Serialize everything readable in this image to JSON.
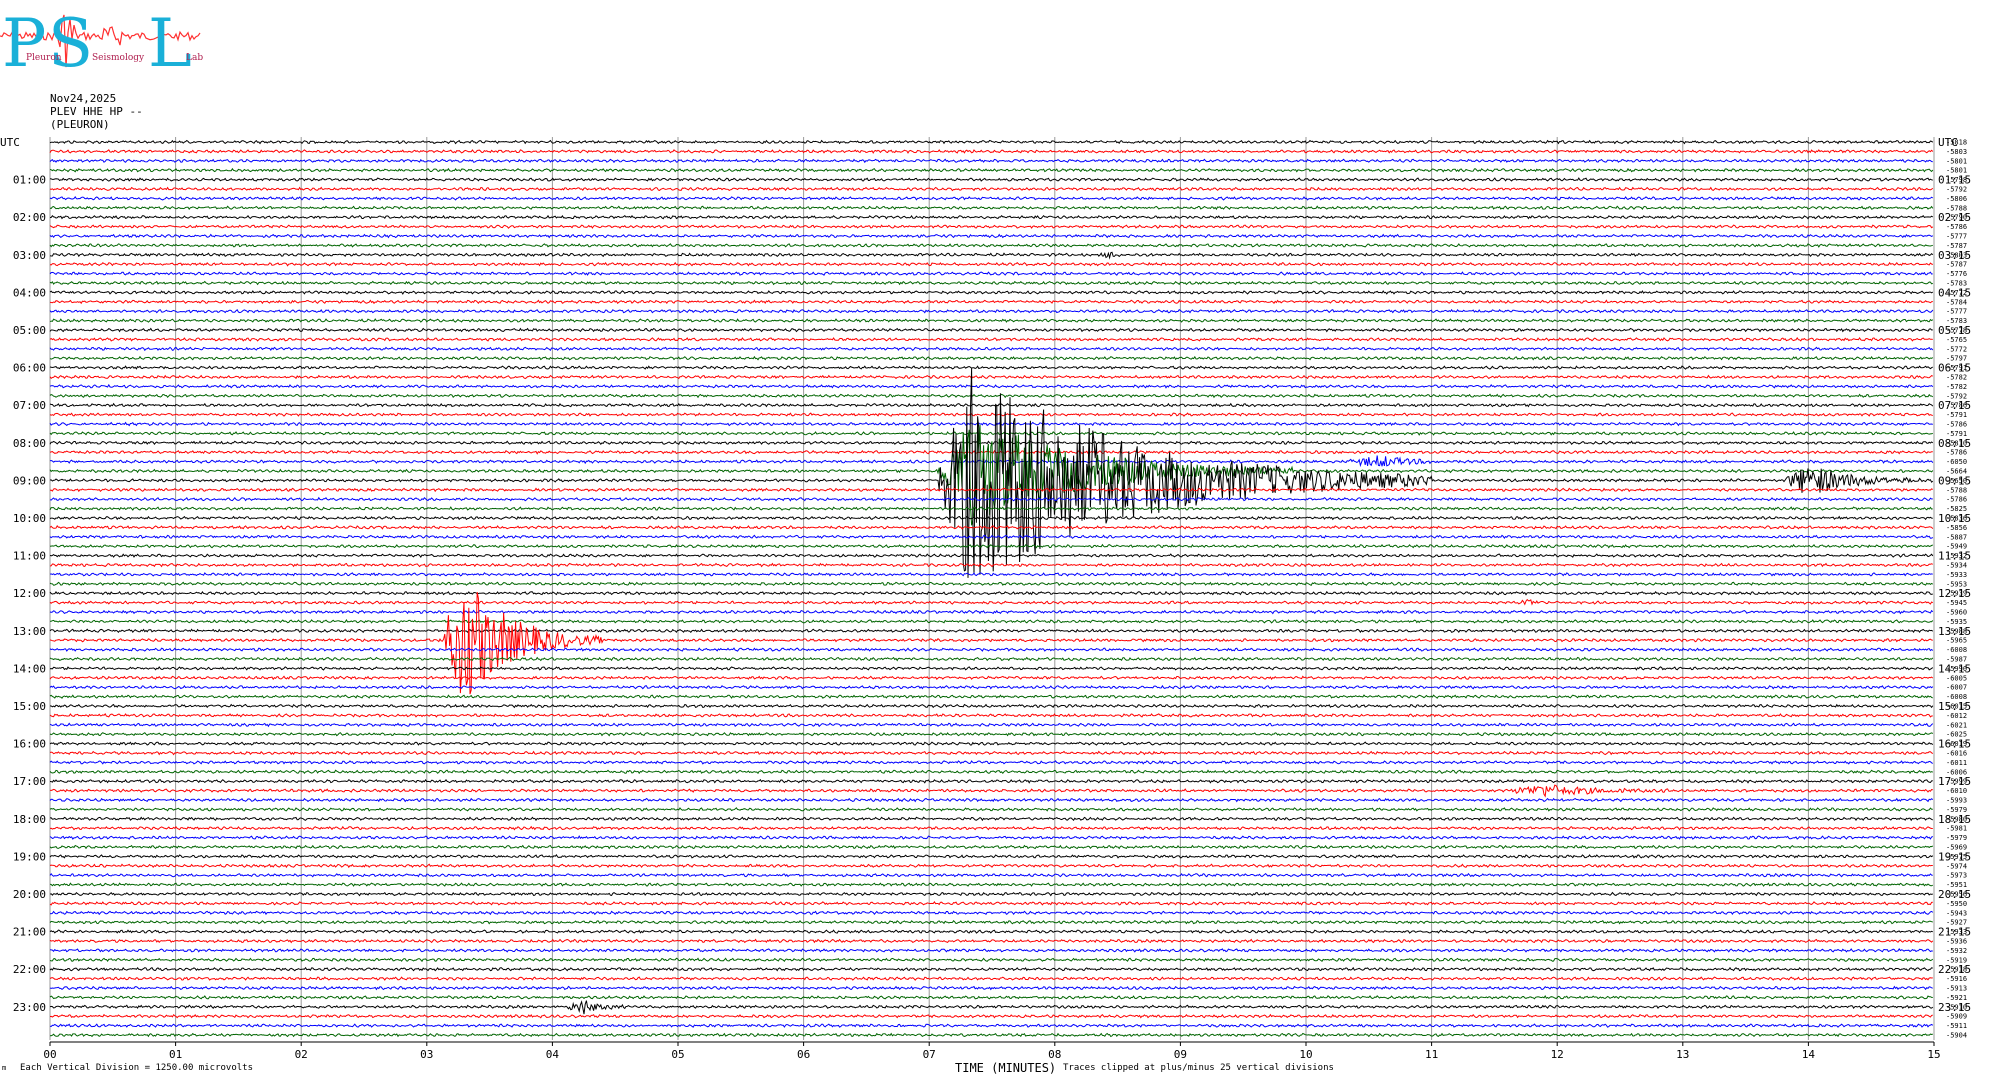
{
  "logo": {
    "letters": "PSL",
    "words": [
      "Pleuron",
      "Seismology",
      "Lab"
    ],
    "letter_color": "#1ab0d8",
    "trace_color": "#ff3030"
  },
  "header": {
    "date": "Nov24,2025",
    "station": "PLEV HHE HP --",
    "site": "(PLEURON)"
  },
  "footer": {
    "scale_note": "Each Vertical Division = 1250.00 microvolts",
    "xaxis_title": "TIME (MINUTES)",
    "clip_note": "Traces clipped at plus/minus 25 vertical divisions",
    "corner_mark": "m"
  },
  "chart_data": {
    "type": "line",
    "title": "",
    "xlabel": "TIME (MINUTES)",
    "xlim": [
      0,
      15
    ],
    "x_ticks": [
      "00",
      "01",
      "02",
      "03",
      "04",
      "05",
      "06",
      "07",
      "08",
      "09",
      "10",
      "11",
      "12",
      "13",
      "14",
      "15"
    ],
    "rows_per_hour": 4,
    "minutes_per_row": 15,
    "n_rows": 96,
    "color_cycle": [
      "#000000",
      "#ff0000",
      "#0000ff",
      "#006400"
    ],
    "left_axis_title": "UTC",
    "right_axis_title": "UTC",
    "left_labels": [
      "01:00",
      "02:00",
      "03:00",
      "04:00",
      "05:00",
      "06:00",
      "07:00",
      "08:00",
      "09:00",
      "10:00",
      "11:00",
      "12:00",
      "13:00",
      "14:00",
      "15:00",
      "16:00",
      "17:00",
      "18:00",
      "19:00",
      "20:00",
      "21:00",
      "22:00",
      "23:00"
    ],
    "right_labels": [
      "01:15",
      "02:15",
      "03:15",
      "04:15",
      "05:15",
      "06:15",
      "07:15",
      "08:15",
      "09:15",
      "10:15",
      "11:15",
      "12:15",
      "13:15",
      "14:15",
      "15:15",
      "16:15",
      "17:15",
      "18:15",
      "19:15",
      "20:15",
      "21:15",
      "22:15",
      "23:15"
    ],
    "offsets": [
      -5818,
      -5803,
      -5801,
      -5801,
      -5798,
      -5792,
      -5806,
      -5788,
      -5790,
      -5786,
      -5777,
      -5787,
      -5803,
      -5787,
      -5776,
      -5783,
      -5772,
      -5784,
      -5777,
      -5783,
      -5778,
      -5765,
      -5772,
      -5797,
      -5791,
      -5782,
      -5782,
      -5792,
      -5786,
      -5791,
      -5786,
      -5791,
      -5810,
      -5786,
      -6050,
      -5664,
      -5650,
      -5788,
      -5786,
      -5825,
      -5836,
      -5856,
      -5887,
      -5949,
      -5932,
      -5934,
      -5933,
      -5953,
      -5939,
      -5945,
      -5960,
      -5935,
      -5988,
      -5965,
      -6008,
      -5987,
      -5990,
      -6005,
      -6007,
      -6008,
      -6015,
      -6012,
      -6021,
      -6025,
      -6019,
      -6016,
      -6011,
      -6006,
      -5999,
      -6010,
      -5993,
      -5979,
      -5980,
      -5981,
      -5979,
      -5969,
      -5975,
      -5974,
      -5973,
      -5951,
      -5956,
      -5950,
      -5943,
      -5927,
      -5933,
      -5936,
      -5932,
      -5919,
      -5918,
      -5916,
      -5913,
      -5921,
      -5910,
      -5909,
      -5911,
      -5904
    ],
    "events": [
      {
        "row": 35,
        "start_min": 7.05,
        "peak_min": 7.35,
        "end_min": 9.9,
        "peak_amplitude_div": 12
      },
      {
        "row": 36,
        "start_min": 7.05,
        "peak_min": 7.35,
        "end_min": 11.0,
        "peak_amplitude_div": 25
      },
      {
        "row": 34,
        "start_min": 10.3,
        "peak_min": 10.6,
        "end_min": 11.2,
        "peak_amplitude_div": 1.2
      },
      {
        "row": 36,
        "start_min": 13.8,
        "peak_min": 14.0,
        "end_min": 15.0,
        "peak_amplitude_div": 3.5
      },
      {
        "row": 53,
        "start_min": 3.1,
        "peak_min": 3.3,
        "end_min": 4.4,
        "peak_amplitude_div": 14
      },
      {
        "row": 69,
        "start_min": 11.6,
        "peak_min": 11.9,
        "end_min": 13.0,
        "peak_amplitude_div": 1.2
      },
      {
        "row": 92,
        "start_min": 4.1,
        "peak_min": 4.25,
        "end_min": 4.6,
        "peak_amplitude_div": 1.5
      },
      {
        "row": 12,
        "start_min": 8.35,
        "peak_min": 8.45,
        "end_min": 8.6,
        "peak_amplitude_div": 0.8
      },
      {
        "row": 49,
        "start_min": 11.7,
        "peak_min": 11.78,
        "end_min": 11.9,
        "peak_amplitude_div": 0.8
      }
    ],
    "grid": true
  }
}
